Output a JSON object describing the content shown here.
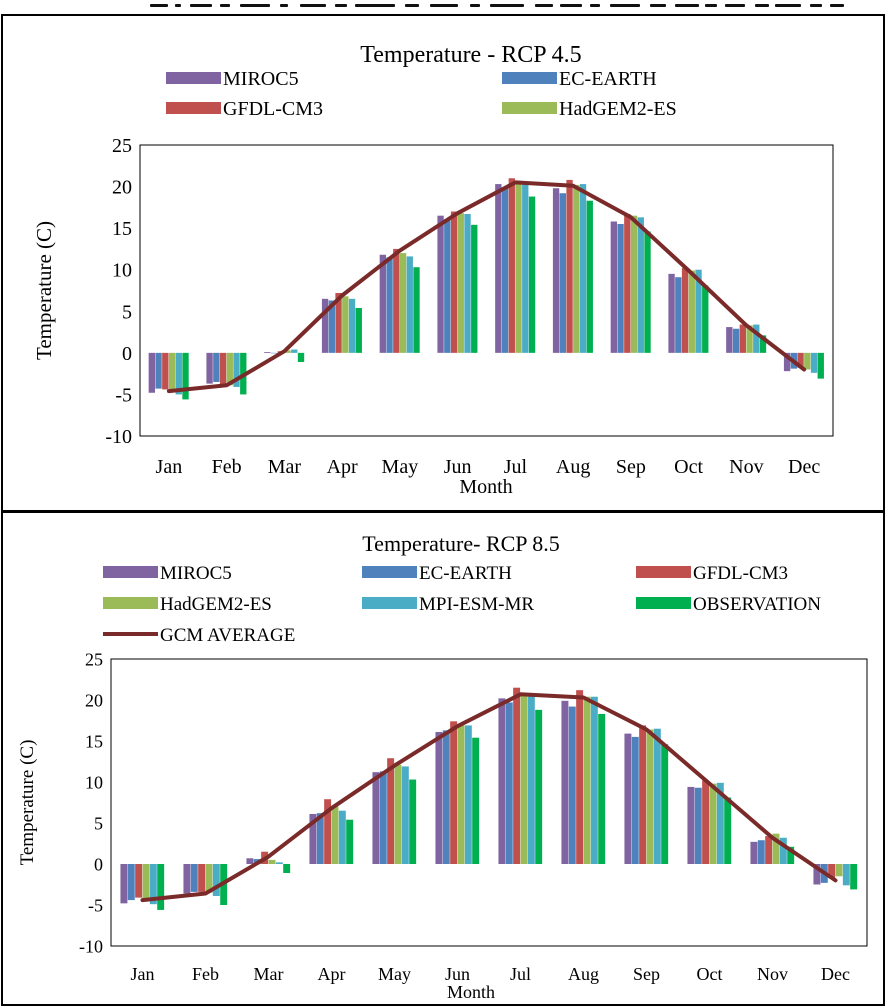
{
  "colors": {
    "MIROC5": "#8064a2",
    "EC-EARTH": "#4f81bd",
    "GFDL-CM3": "#c0504d",
    "HadGEM2-ES": "#9bbb59",
    "MPI-ESM-MR": "#4bacc6",
    "OBSERVATION": "#00b050",
    "GCM AVERAGE": "#7b2a2a"
  },
  "chart_data": [
    {
      "type": "bar",
      "title": "Temperature - RCP 4.5",
      "xlabel": "Month",
      "ylabel": "Temperature (C)",
      "ylim": [
        -10,
        25
      ],
      "yticks": [
        -10,
        -5,
        0,
        5,
        10,
        15,
        20,
        25
      ],
      "grid": false,
      "legend_position": "top",
      "legend_entries": [
        "MIROC5",
        "EC-EARTH",
        "GFDL-CM3",
        "HadGEM2-ES"
      ],
      "categories": [
        "Jan",
        "Feb",
        "Mar",
        "Apr",
        "May",
        "Jun",
        "Jul",
        "Aug",
        "Sep",
        "Oct",
        "Nov",
        "Dec"
      ],
      "series": [
        {
          "name": "MIROC5",
          "values": [
            -4.8,
            -3.7,
            0.1,
            6.5,
            11.8,
            16.5,
            20.3,
            19.8,
            15.8,
            9.5,
            3.1,
            -2.2
          ]
        },
        {
          "name": "EC-EARTH",
          "values": [
            -4.3,
            -3.5,
            0.0,
            6.3,
            11.5,
            16.1,
            19.8,
            19.2,
            15.5,
            9.1,
            2.9,
            -1.9
          ]
        },
        {
          "name": "GFDL-CM3",
          "values": [
            -4.4,
            -3.8,
            0.2,
            7.2,
            12.5,
            17.0,
            21.0,
            20.8,
            16.7,
            10.2,
            3.4,
            -1.8
          ]
        },
        {
          "name": "HadGEM2-ES",
          "values": [
            -4.6,
            -3.9,
            0.3,
            6.8,
            12.0,
            16.8,
            20.7,
            20.2,
            16.5,
            9.9,
            3.3,
            -2.0
          ]
        },
        {
          "name": "MPI-ESM-MR",
          "values": [
            -5.0,
            -4.1,
            0.4,
            6.5,
            11.6,
            16.7,
            20.5,
            20.3,
            16.3,
            10.0,
            3.4,
            -2.4
          ]
        },
        {
          "name": "OBSERVATION",
          "values": [
            -5.6,
            -5.0,
            -1.1,
            5.4,
            10.3,
            15.4,
            18.8,
            18.3,
            14.6,
            8.1,
            2.1,
            -3.1
          ]
        },
        {
          "name": "GCM AVERAGE",
          "type": "line",
          "values": [
            -4.6,
            -3.9,
            0.2,
            6.9,
            12.3,
            16.8,
            20.5,
            20.1,
            16.3,
            9.9,
            3.3,
            -2.0
          ]
        }
      ]
    },
    {
      "type": "bar",
      "title": "Temperature- RCP 8.5",
      "xlabel": "Month",
      "ylabel": "Temperature (C)",
      "ylim": [
        -10,
        25
      ],
      "yticks": [
        -10,
        -5,
        0,
        5,
        10,
        15,
        20,
        25
      ],
      "grid": false,
      "legend_position": "top",
      "legend_entries": [
        "MIROC5",
        "EC-EARTH",
        "GFDL-CM3",
        "HadGEM2-ES",
        "MPI-ESM-MR",
        "OBSERVATION",
        "GCM AVERAGE"
      ],
      "categories": [
        "Jan",
        "Feb",
        "Mar",
        "Apr",
        "May",
        "Jun",
        "Jul",
        "Aug",
        "Sep",
        "Oct",
        "Nov",
        "Dec"
      ],
      "series": [
        {
          "name": "MIROC5",
          "values": [
            -4.8,
            -3.6,
            0.7,
            6.1,
            11.2,
            16.1,
            20.2,
            19.9,
            15.9,
            9.4,
            2.7,
            -2.5
          ]
        },
        {
          "name": "EC-EARTH",
          "values": [
            -4.4,
            -3.4,
            0.6,
            6.2,
            11.3,
            16.3,
            19.7,
            19.2,
            15.5,
            9.3,
            2.9,
            -2.3
          ]
        },
        {
          "name": "GFDL-CM3",
          "values": [
            -4.1,
            -3.4,
            1.5,
            7.9,
            12.9,
            17.4,
            21.5,
            21.2,
            16.9,
            10.2,
            3.4,
            -1.7
          ]
        },
        {
          "name": "HadGEM2-ES",
          "values": [
            -4.2,
            -3.5,
            0.5,
            7.0,
            12.1,
            16.9,
            20.8,
            20.4,
            16.4,
            9.8,
            3.7,
            -1.5
          ]
        },
        {
          "name": "MPI-ESM-MR",
          "values": [
            -4.9,
            -3.9,
            0.2,
            6.5,
            11.9,
            16.9,
            20.5,
            20.4,
            16.5,
            9.9,
            3.2,
            -2.6
          ]
        },
        {
          "name": "OBSERVATION",
          "values": [
            -5.6,
            -5.0,
            -1.1,
            5.4,
            10.3,
            15.4,
            18.8,
            18.3,
            14.6,
            8.1,
            2.1,
            -3.1
          ]
        },
        {
          "name": "GCM AVERAGE",
          "type": "line",
          "values": [
            -4.4,
            -3.6,
            0.9,
            6.8,
            12.0,
            16.8,
            20.7,
            20.3,
            16.4,
            9.8,
            3.2,
            -2.0
          ]
        }
      ]
    }
  ]
}
